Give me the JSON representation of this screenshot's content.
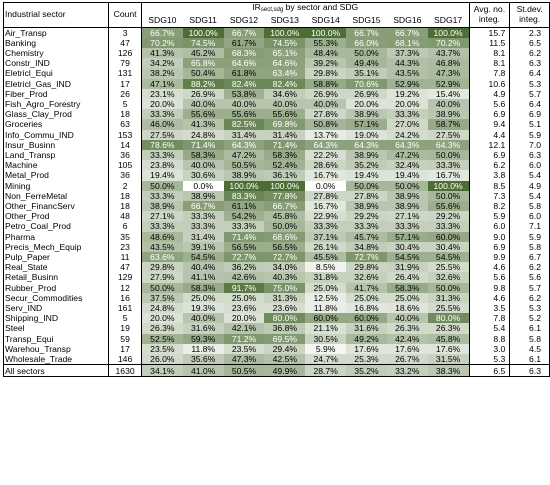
{
  "header": {
    "sector": "Industrial sector",
    "count": "Count",
    "ir_main": "IR",
    "ir_sub": "sect,sdg",
    "ir_rest": " by sector and SDG",
    "sdgs": [
      "SDG10",
      "SDG11",
      "SDG12",
      "SDG13",
      "SDG14",
      "SDG15",
      "SDG16",
      "SDG17"
    ],
    "avg_line1": "Avg. no.",
    "avg_line2": "integ.",
    "std_line1": "St.dev.",
    "std_line2": "integ."
  },
  "rows": [
    {
      "sector": "Air_Transp",
      "count": "3",
      "v": [
        "66.7%",
        "100.0%",
        "66.7%",
        "100.0%",
        "100.0%",
        "66.7%",
        "66.7%",
        "100.0%"
      ],
      "avg": "15.7",
      "std": "2.3"
    },
    {
      "sector": "Banking",
      "count": "47",
      "v": [
        "70.2%",
        "74.5%",
        "61.7%",
        "74.5%",
        "55.3%",
        "66.0%",
        "68.1%",
        "70.2%"
      ],
      "avg": "11.5",
      "std": "6.5"
    },
    {
      "sector": "Chemistry",
      "count": "126",
      "v": [
        "41.3%",
        "45.2%",
        "68.3%",
        "65.1%",
        "48.4%",
        "50.0%",
        "37.3%",
        "43.7%"
      ],
      "avg": "8.1",
      "std": "6.2"
    },
    {
      "sector": "Constr_IND",
      "count": "79",
      "v": [
        "34.2%",
        "65.8%",
        "64.6%",
        "64.6%",
        "39.2%",
        "49.4%",
        "44.3%",
        "46.8%"
      ],
      "avg": "8.1",
      "std": "6.3"
    },
    {
      "sector": "Eletricl_Equi",
      "count": "131",
      "v": [
        "38.2%",
        "50.4%",
        "61.8%",
        "63.4%",
        "29.8%",
        "35.1%",
        "43.5%",
        "47.3%"
      ],
      "avg": "7.8",
      "std": "6.4"
    },
    {
      "sector": "Eletricl_Gas_IND",
      "count": "17",
      "v": [
        "47.1%",
        "88.2%",
        "82.4%",
        "82.4%",
        "58.8%",
        "70.6%",
        "52.9%",
        "52.9%"
      ],
      "avg": "10.6",
      "std": "5.3"
    },
    {
      "sector": "Fiber_Prod",
      "count": "26",
      "v": [
        "23.1%",
        "26.9%",
        "53.8%",
        "34.6%",
        "26.9%",
        "26.9%",
        "19.2%",
        "15.4%"
      ],
      "avg": "4.9",
      "std": "5.7"
    },
    {
      "sector": "Fish_Agro_Forestry",
      "count": "5",
      "v": [
        "20.0%",
        "40.0%",
        "40.0%",
        "40.0%",
        "40.0%",
        "20.0%",
        "20.0%",
        "40.0%"
      ],
      "avg": "5.6",
      "std": "6.4"
    },
    {
      "sector": "Glass_Clay_Prod",
      "count": "18",
      "v": [
        "33.3%",
        "55.6%",
        "55.6%",
        "55.6%",
        "27.8%",
        "38.9%",
        "33.3%",
        "38.9%"
      ],
      "avg": "6.9",
      "std": "6.9"
    },
    {
      "sector": "Groceries",
      "count": "63",
      "v": [
        "46.0%",
        "41.3%",
        "82.5%",
        "69.8%",
        "50.8%",
        "57.1%",
        "27.0%",
        "58.7%"
      ],
      "avg": "9.4",
      "std": "5.1"
    },
    {
      "sector": "Info_Commu_IND",
      "count": "153",
      "v": [
        "27.5%",
        "24.8%",
        "31.4%",
        "31.4%",
        "13.7%",
        "19.0%",
        "24.2%",
        "27.5%"
      ],
      "avg": "4.4",
      "std": "5.9"
    },
    {
      "sector": "Insur_Businn",
      "count": "14",
      "v": [
        "78.6%",
        "71.4%",
        "64.3%",
        "71.4%",
        "64.3%",
        "64.3%",
        "64.3%",
        "64.3%"
      ],
      "avg": "12.1",
      "std": "7.0"
    },
    {
      "sector": "Land_Transp",
      "count": "36",
      "v": [
        "33.3%",
        "58.3%",
        "47.2%",
        "58.3%",
        "22.2%",
        "38.9%",
        "47.2%",
        "50.0%"
      ],
      "avg": "6.9",
      "std": "6.3"
    },
    {
      "sector": "Machine",
      "count": "105",
      "v": [
        "23.8%",
        "40.0%",
        "50.5%",
        "52.4%",
        "28.6%",
        "35.2%",
        "32.4%",
        "33.3%"
      ],
      "avg": "6.2",
      "std": "6.0"
    },
    {
      "sector": "Metal_Prod",
      "count": "36",
      "v": [
        "19.4%",
        "30.6%",
        "38.9%",
        "36.1%",
        "16.7%",
        "19.4%",
        "19.4%",
        "16.7%"
      ],
      "avg": "3.8",
      "std": "5.4"
    },
    {
      "sector": "Mining",
      "count": "2",
      "v": [
        "50.0%",
        "0.0%",
        "100.0%",
        "100.0%",
        "0.0%",
        "50.0%",
        "50.0%",
        "100.0%"
      ],
      "avg": "8.5",
      "std": "4.9"
    },
    {
      "sector": "Non_FerreMetal",
      "count": "18",
      "v": [
        "33.3%",
        "38.9%",
        "83.3%",
        "77.8%",
        "27.8%",
        "27.8%",
        "38.9%",
        "50.0%"
      ],
      "avg": "7.3",
      "std": "5.4"
    },
    {
      "sector": "Other_FinancServ",
      "count": "18",
      "v": [
        "38.9%",
        "66.7%",
        "61.1%",
        "66.7%",
        "16.7%",
        "38.9%",
        "38.9%",
        "55.6%"
      ],
      "avg": "8.2",
      "std": "5.8"
    },
    {
      "sector": "Other_Prod",
      "count": "48",
      "v": [
        "27.1%",
        "33.3%",
        "54.2%",
        "45.8%",
        "22.9%",
        "29.2%",
        "27.1%",
        "29.2%"
      ],
      "avg": "5.9",
      "std": "6.0"
    },
    {
      "sector": "Petro_Coal_Prod",
      "count": "6",
      "v": [
        "33.3%",
        "33.3%",
        "33.3%",
        "50.0%",
        "33.3%",
        "33.3%",
        "33.3%",
        "33.3%"
      ],
      "avg": "6.0",
      "std": "7.1"
    },
    {
      "sector": "Pharma",
      "count": "35",
      "v": [
        "48.6%",
        "31.4%",
        "71.4%",
        "68.6%",
        "37.1%",
        "45.7%",
        "57.1%",
        "60.0%"
      ],
      "avg": "9.0",
      "std": "5.9"
    },
    {
      "sector": "Precis_Mech_Equip",
      "count": "23",
      "v": [
        "43.5%",
        "39.1%",
        "56.5%",
        "56.5%",
        "26.1%",
        "34.8%",
        "30.4%",
        "30.4%"
      ],
      "avg": "6.9",
      "std": "5.8"
    },
    {
      "sector": "Pulp_Paper",
      "count": "11",
      "v": [
        "63.6%",
        "54.5%",
        "72.7%",
        "72.7%",
        "45.5%",
        "72.7%",
        "54.5%",
        "54.5%"
      ],
      "avg": "9.9",
      "std": "6.7"
    },
    {
      "sector": "Real_State",
      "count": "47",
      "v": [
        "29.8%",
        "40.4%",
        "36.2%",
        "34.0%",
        "8.5%",
        "29.8%",
        "31.9%",
        "25.5%"
      ],
      "avg": "4.6",
      "std": "6.2"
    },
    {
      "sector": "Retail_Businn",
      "count": "129",
      "v": [
        "27.9%",
        "41.1%",
        "42.6%",
        "40.3%",
        "31.8%",
        "32.6%",
        "26.4%",
        "32.6%"
      ],
      "avg": "5.6",
      "std": "5.6"
    },
    {
      "sector": "Rubber_Prod",
      "count": "12",
      "v": [
        "50.0%",
        "58.3%",
        "91.7%",
        "75.0%",
        "25.0%",
        "41.7%",
        "58.3%",
        "50.0%"
      ],
      "avg": "9.8",
      "std": "5.7"
    },
    {
      "sector": "Secur_Commodities",
      "count": "16",
      "v": [
        "37.5%",
        "25.0%",
        "25.0%",
        "31.3%",
        "12.5%",
        "25.0%",
        "25.0%",
        "31.3%"
      ],
      "avg": "4.6",
      "std": "6.2"
    },
    {
      "sector": "Serv_IND",
      "count": "161",
      "v": [
        "24.8%",
        "19.3%",
        "23.6%",
        "23.6%",
        "11.8%",
        "16.8%",
        "18.6%",
        "25.5%"
      ],
      "avg": "3.5",
      "std": "5.3"
    },
    {
      "sector": "Shipping_IND",
      "count": "5",
      "v": [
        "20.0%",
        "40.0%",
        "20.0%",
        "80.0%",
        "60.0%",
        "60.0%",
        "40.0%",
        "80.0%"
      ],
      "avg": "7.8",
      "std": "5.2"
    },
    {
      "sector": "Steel",
      "count": "19",
      "v": [
        "26.3%",
        "31.6%",
        "42.1%",
        "36.8%",
        "21.1%",
        "31.6%",
        "26.3%",
        "26.3%"
      ],
      "avg": "5.4",
      "std": "6.1"
    },
    {
      "sector": "Transp_Equi",
      "count": "59",
      "v": [
        "52.5%",
        "59.3%",
        "71.2%",
        "69.5%",
        "30.5%",
        "49.2%",
        "42.4%",
        "45.8%"
      ],
      "avg": "8.8",
      "std": "5.8"
    },
    {
      "sector": "Warehou_Transp",
      "count": "17",
      "v": [
        "23.5%",
        "11.8%",
        "23.5%",
        "29.4%",
        "5.9%",
        "17.6%",
        "17.6%",
        "17.6%"
      ],
      "avg": "3.0",
      "std": "4.5"
    },
    {
      "sector": "Wholesale_Trade",
      "count": "146",
      "v": [
        "26.0%",
        "35.6%",
        "47.3%",
        "42.5%",
        "24.7%",
        "25.3%",
        "26.7%",
        "31.5%"
      ],
      "avg": "5.3",
      "std": "6.1"
    }
  ],
  "total": {
    "sector": "All sectors",
    "count": "1630",
    "v": [
      "34.1%",
      "41.0%",
      "50.5%",
      "49.9%",
      "28.7%",
      "35.2%",
      "33.2%",
      "38.3%"
    ],
    "avg": "6.5",
    "std": "6.3"
  },
  "colors": {
    "dark": "#4c6e34",
    "light": "#ffffff"
  }
}
